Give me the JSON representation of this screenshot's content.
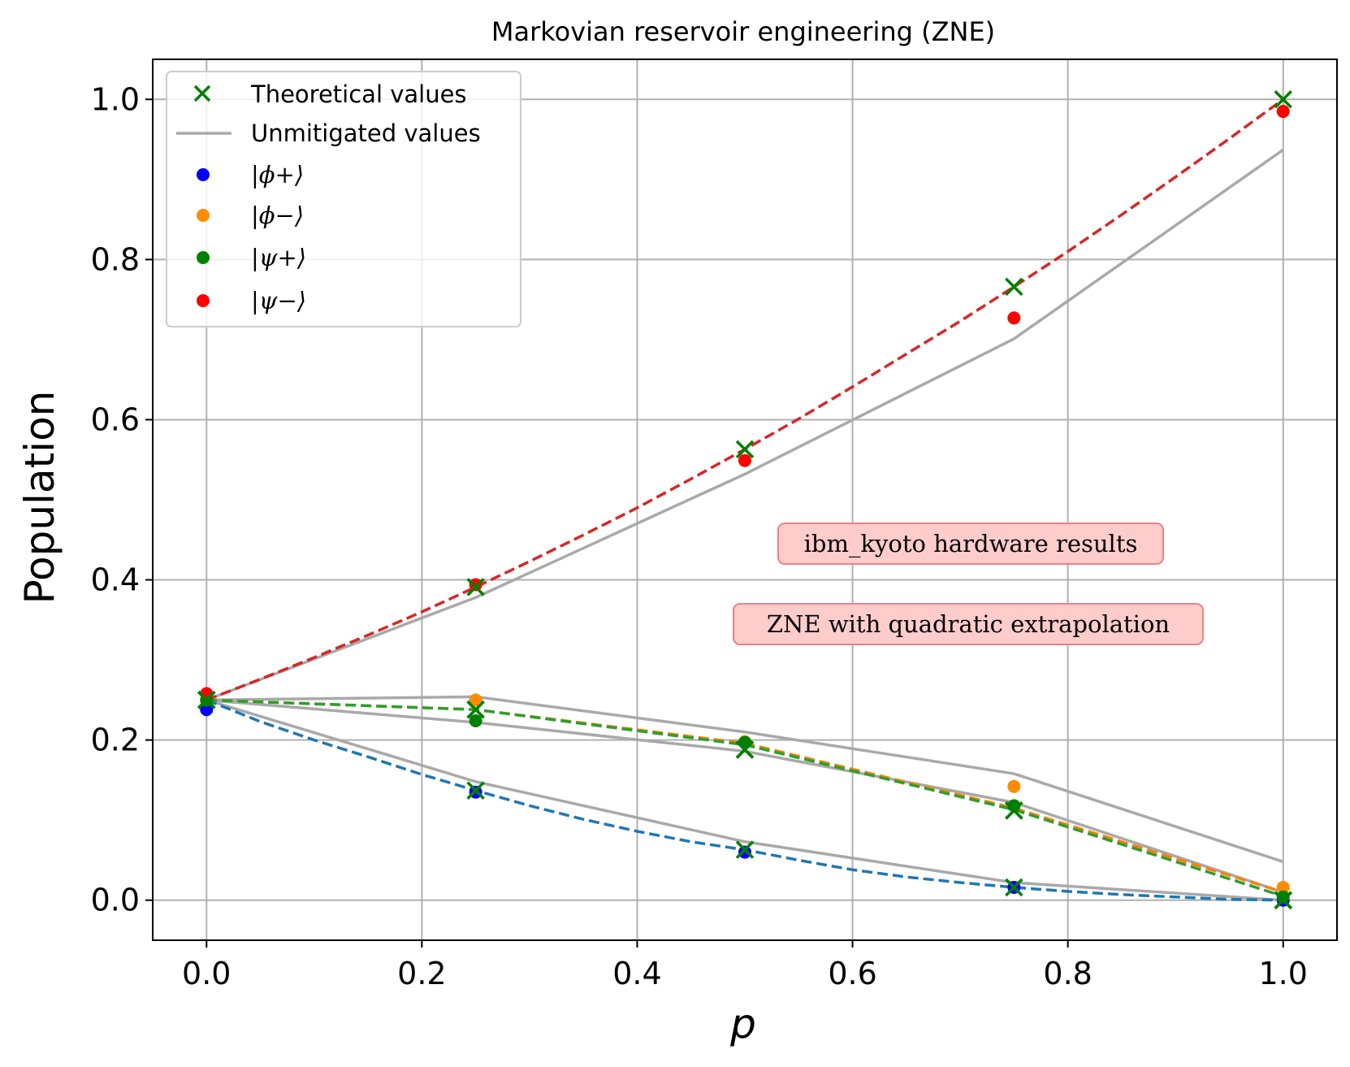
{
  "chart_data": {
    "type": "line",
    "title": "Markovian reservoir engineering (ZNE)",
    "xlabel": "p",
    "ylabel": "Population",
    "xlim": [
      -0.05,
      1.05
    ],
    "ylim": [
      -0.05,
      1.05
    ],
    "xticks": [
      0.0,
      0.2,
      0.4,
      0.6,
      0.8,
      1.0
    ],
    "yticks": [
      0.0,
      0.2,
      0.4,
      0.6,
      0.8,
      1.0
    ],
    "xtick_labels": [
      "0.0",
      "0.2",
      "0.4",
      "0.6",
      "0.8",
      "1.0"
    ],
    "ytick_labels": [
      "0.0",
      "0.2",
      "0.4",
      "0.6",
      "0.8",
      "1.0"
    ],
    "grid": true,
    "legend_position": "top-left",
    "legend": {
      "theoretical": "Theoretical values",
      "unmitigated": "Unmitigated values",
      "phi_plus": "|ϕ+⟩",
      "phi_minus": "|ϕ−⟩",
      "psi_plus": "|ψ+⟩",
      "psi_minus": "|ψ−⟩"
    },
    "annotations": {
      "hardware": "ibm_kyoto hardware results",
      "method": "ZNE with quadratic extrapolation"
    },
    "colors": {
      "theoretical_marker": "#008000",
      "unmitigated": "#a9a9a9",
      "phi_plus_point": "#0000ff",
      "phi_minus_point": "#ff8c00",
      "psi_plus_point": "#008000",
      "psi_minus_point": "#ff0000",
      "phi_plus_fit": "#1f77b4",
      "phi_minus_fit": "#ff7f0e",
      "psi_plus_fit": "#2ca02c",
      "psi_minus_fit": "#d62728",
      "annotation_bg": "#ffcccc",
      "annotation_border": "#f08080"
    },
    "x": [
      0.0,
      0.25,
      0.5,
      0.75,
      1.0
    ],
    "series": [
      {
        "key": "phi_plus",
        "name": "|ϕ+⟩",
        "points": [
          0.238,
          0.135,
          0.06,
          0.016,
          0.0
        ],
        "theoretical": [
          0.25,
          0.137,
          0.063,
          0.016,
          0.0
        ],
        "unmitigated": [
          0.25,
          0.148,
          0.073,
          0.022,
          0.0
        ],
        "fit_x": [
          0.0,
          0.05,
          0.1,
          0.15,
          0.2,
          0.25,
          0.3,
          0.35,
          0.4,
          0.45,
          0.5,
          0.55,
          0.6,
          0.65,
          0.7,
          0.75,
          0.8,
          0.85,
          0.9,
          0.95,
          1.0
        ],
        "fit_y": [
          0.25,
          0.223,
          0.2,
          0.179,
          0.157,
          0.137,
          0.118,
          0.101,
          0.086,
          0.073,
          0.063,
          0.05,
          0.038,
          0.029,
          0.022,
          0.016,
          0.011,
          0.007,
          0.004,
          0.001,
          0.0
        ]
      },
      {
        "key": "phi_minus",
        "name": "|ϕ−⟩",
        "points": [
          0.25,
          0.25,
          0.198,
          0.142,
          0.016
        ],
        "theoretical": [
          0.25,
          0.238,
          0.188,
          0.112,
          0.0
        ],
        "unmitigated": [
          0.25,
          0.254,
          0.21,
          0.158,
          0.048
        ],
        "fit_x": [
          0.0,
          0.25,
          0.5,
          0.75,
          1.0
        ],
        "fit_y": [
          0.25,
          0.238,
          0.196,
          0.115,
          0.01
        ]
      },
      {
        "key": "psi_plus",
        "name": "|ψ+⟩",
        "points": [
          0.25,
          0.224,
          0.197,
          0.118,
          0.004
        ],
        "theoretical": [
          0.25,
          0.238,
          0.188,
          0.112,
          0.0
        ],
        "unmitigated": [
          0.25,
          0.222,
          0.186,
          0.122,
          0.01
        ],
        "fit_x": [
          0.0,
          0.25,
          0.5,
          0.75,
          1.0
        ],
        "fit_y": [
          0.25,
          0.238,
          0.194,
          0.113,
          0.005
        ]
      },
      {
        "key": "psi_minus",
        "name": "|ψ−⟩",
        "points": [
          0.258,
          0.394,
          0.549,
          0.727,
          0.985
        ],
        "theoretical": [
          0.25,
          0.391,
          0.563,
          0.766,
          1.0
        ],
        "unmitigated": [
          0.25,
          0.378,
          0.532,
          0.701,
          0.937
        ],
        "fit_x": [
          0.0,
          0.05,
          0.1,
          0.15,
          0.2,
          0.25,
          0.3,
          0.35,
          0.4,
          0.45,
          0.5,
          0.55,
          0.6,
          0.65,
          0.7,
          0.75,
          0.8,
          0.85,
          0.9,
          0.95,
          1.0
        ],
        "fit_y": [
          0.25,
          0.276,
          0.303,
          0.331,
          0.36,
          0.391,
          0.423,
          0.456,
          0.49,
          0.526,
          0.563,
          0.601,
          0.641,
          0.682,
          0.723,
          0.766,
          0.81,
          0.856,
          0.903,
          0.951,
          1.0
        ]
      }
    ]
  }
}
